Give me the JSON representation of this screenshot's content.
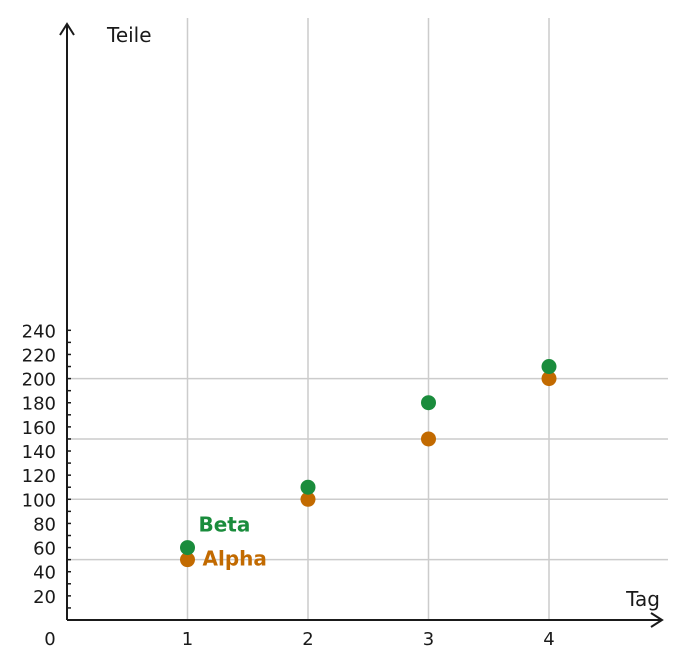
{
  "chart_data": {
    "type": "scatter",
    "title": "",
    "xlabel": "Tag",
    "ylabel": "Teile",
    "xlim": [
      0,
      5
    ],
    "ylim": [
      0,
      250
    ],
    "x_ticks": [
      1,
      2,
      3,
      4
    ],
    "y_ticks": [
      20,
      40,
      60,
      80,
      100,
      120,
      140,
      160,
      180,
      200,
      220,
      240
    ],
    "origin_label": "0",
    "grid": true,
    "legend": "inline labels next to first points",
    "series": [
      {
        "name": "Alpha",
        "color": "#c26a00",
        "x": [
          1,
          2,
          3,
          4
        ],
        "y": [
          50,
          100,
          150,
          200
        ]
      },
      {
        "name": "Beta",
        "color": "#1a8c3c",
        "x": [
          1,
          2,
          3,
          4
        ],
        "y": [
          60,
          110,
          180,
          210
        ]
      }
    ],
    "colors": {
      "axis": "#1a1a1a",
      "grid": "#cccccc",
      "text": "#1a1a1a"
    }
  }
}
